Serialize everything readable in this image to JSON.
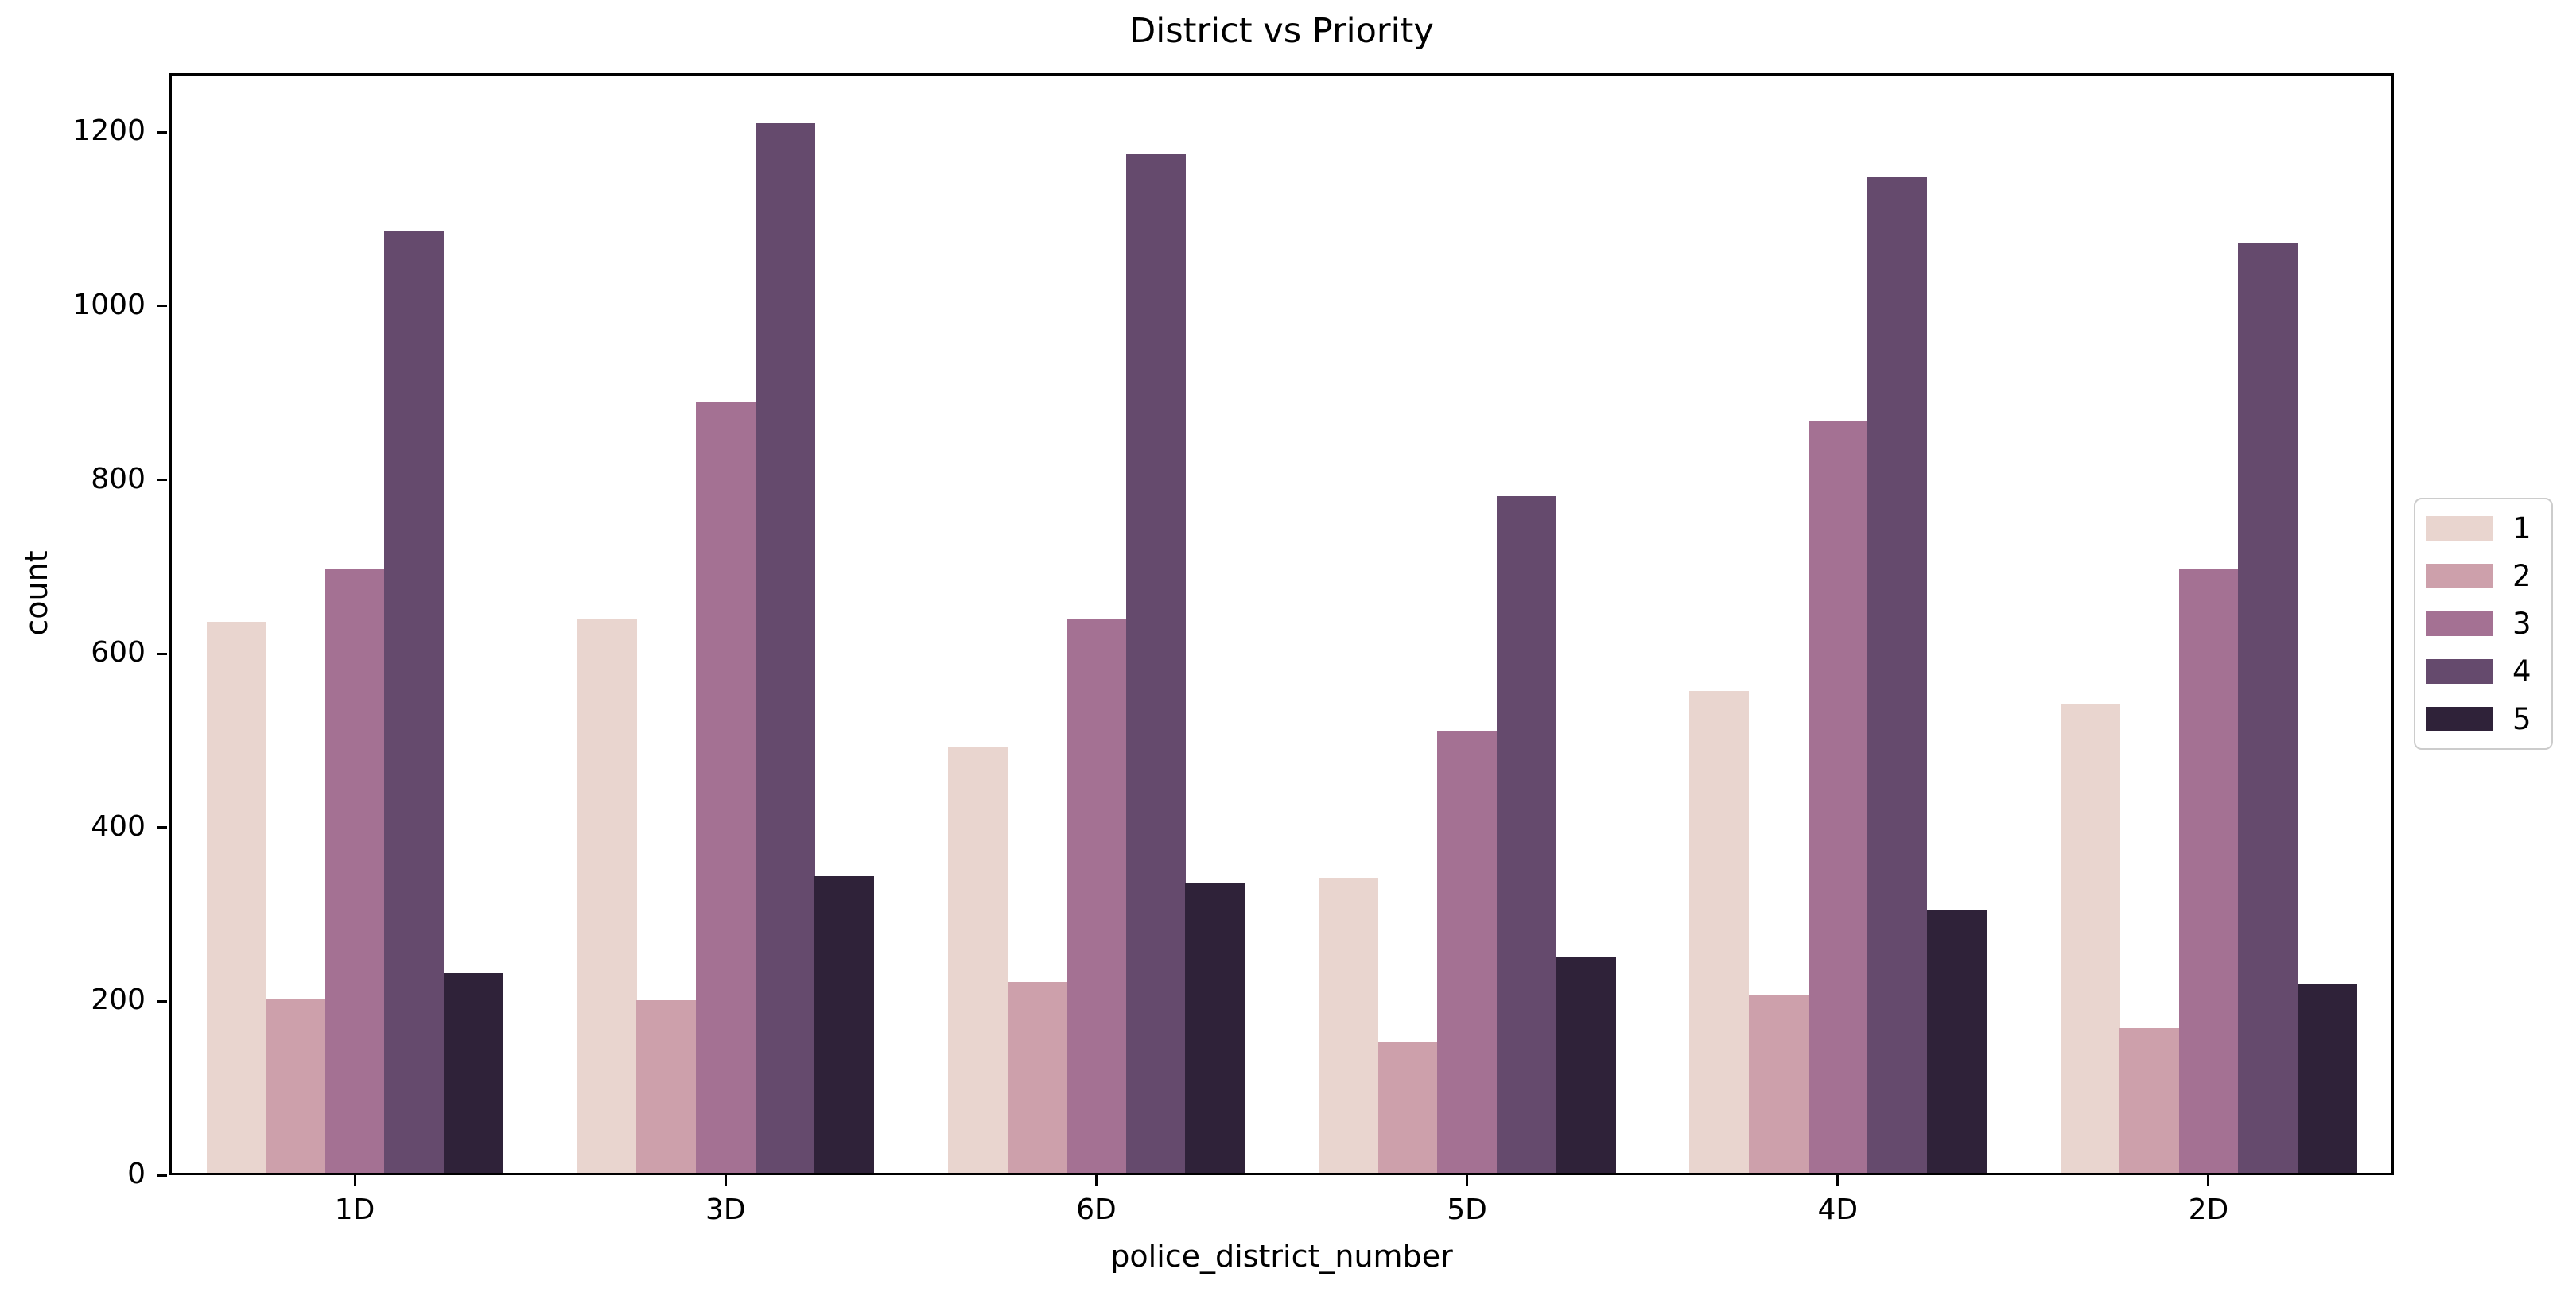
{
  "figure": {
    "background": "#ffffff"
  },
  "chart_data": {
    "type": "bar",
    "title": "District vs Priority",
    "xlabel": "police_district_number",
    "ylabel": "count",
    "categories": [
      "1D",
      "3D",
      "6D",
      "5D",
      "4D",
      "2D"
    ],
    "series": [
      {
        "name": "1",
        "color": "#e9d5cf",
        "values": [
          637,
          640,
          493,
          342,
          557,
          542
        ]
      },
      {
        "name": "2",
        "color": "#cda0ab",
        "values": [
          203,
          201,
          222,
          154,
          207,
          169
        ]
      },
      {
        "name": "3",
        "color": "#a47193",
        "values": [
          698,
          890,
          640,
          511,
          868,
          698
        ]
      },
      {
        "name": "4",
        "color": "#654a6d",
        "values": [
          1086,
          1210,
          1175,
          781,
          1148,
          1072
        ]
      },
      {
        "name": "5",
        "color": "#2f2239",
        "values": [
          232,
          344,
          336,
          251,
          305,
          220
        ]
      }
    ],
    "yticks": [
      0,
      200,
      400,
      600,
      800,
      1000,
      1200
    ],
    "ylim": [
      0,
      1268
    ],
    "grid": false,
    "legend_position": "right",
    "bar_group_fraction": 0.8,
    "axis_color": "#000000",
    "legend_border_color": "#cccccc"
  }
}
